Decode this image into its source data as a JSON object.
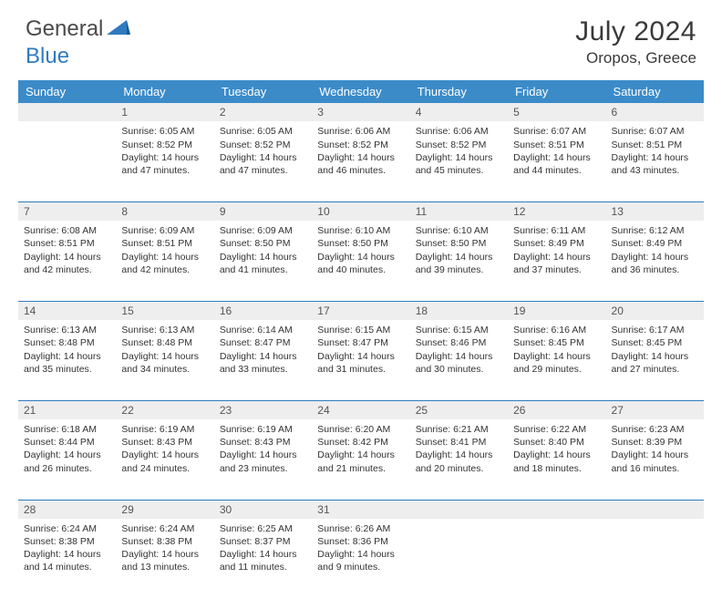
{
  "logo": {
    "part1": "General",
    "part2": "Blue"
  },
  "title": "July 2024",
  "location": "Oropos, Greece",
  "colors": {
    "header_bg": "#3b8bc9",
    "divider": "#2f7bbf",
    "daynum_bg": "#eeeeee",
    "logo_gray": "#4a4a4a",
    "logo_blue": "#2f7bbf"
  },
  "weekdays": [
    "Sunday",
    "Monday",
    "Tuesday",
    "Wednesday",
    "Thursday",
    "Friday",
    "Saturday"
  ],
  "weeks": [
    {
      "nums": [
        "",
        "1",
        "2",
        "3",
        "4",
        "5",
        "6"
      ],
      "cells": [
        null,
        {
          "sunrise": "6:05 AM",
          "sunset": "8:52 PM",
          "daylight": "14 hours and 47 minutes."
        },
        {
          "sunrise": "6:05 AM",
          "sunset": "8:52 PM",
          "daylight": "14 hours and 47 minutes."
        },
        {
          "sunrise": "6:06 AM",
          "sunset": "8:52 PM",
          "daylight": "14 hours and 46 minutes."
        },
        {
          "sunrise": "6:06 AM",
          "sunset": "8:52 PM",
          "daylight": "14 hours and 45 minutes."
        },
        {
          "sunrise": "6:07 AM",
          "sunset": "8:51 PM",
          "daylight": "14 hours and 44 minutes."
        },
        {
          "sunrise": "6:07 AM",
          "sunset": "8:51 PM",
          "daylight": "14 hours and 43 minutes."
        }
      ]
    },
    {
      "nums": [
        "7",
        "8",
        "9",
        "10",
        "11",
        "12",
        "13"
      ],
      "cells": [
        {
          "sunrise": "6:08 AM",
          "sunset": "8:51 PM",
          "daylight": "14 hours and 42 minutes."
        },
        {
          "sunrise": "6:09 AM",
          "sunset": "8:51 PM",
          "daylight": "14 hours and 42 minutes."
        },
        {
          "sunrise": "6:09 AM",
          "sunset": "8:50 PM",
          "daylight": "14 hours and 41 minutes."
        },
        {
          "sunrise": "6:10 AM",
          "sunset": "8:50 PM",
          "daylight": "14 hours and 40 minutes."
        },
        {
          "sunrise": "6:10 AM",
          "sunset": "8:50 PM",
          "daylight": "14 hours and 39 minutes."
        },
        {
          "sunrise": "6:11 AM",
          "sunset": "8:49 PM",
          "daylight": "14 hours and 37 minutes."
        },
        {
          "sunrise": "6:12 AM",
          "sunset": "8:49 PM",
          "daylight": "14 hours and 36 minutes."
        }
      ]
    },
    {
      "nums": [
        "14",
        "15",
        "16",
        "17",
        "18",
        "19",
        "20"
      ],
      "cells": [
        {
          "sunrise": "6:13 AM",
          "sunset": "8:48 PM",
          "daylight": "14 hours and 35 minutes."
        },
        {
          "sunrise": "6:13 AM",
          "sunset": "8:48 PM",
          "daylight": "14 hours and 34 minutes."
        },
        {
          "sunrise": "6:14 AM",
          "sunset": "8:47 PM",
          "daylight": "14 hours and 33 minutes."
        },
        {
          "sunrise": "6:15 AM",
          "sunset": "8:47 PM",
          "daylight": "14 hours and 31 minutes."
        },
        {
          "sunrise": "6:15 AM",
          "sunset": "8:46 PM",
          "daylight": "14 hours and 30 minutes."
        },
        {
          "sunrise": "6:16 AM",
          "sunset": "8:45 PM",
          "daylight": "14 hours and 29 minutes."
        },
        {
          "sunrise": "6:17 AM",
          "sunset": "8:45 PM",
          "daylight": "14 hours and 27 minutes."
        }
      ]
    },
    {
      "nums": [
        "21",
        "22",
        "23",
        "24",
        "25",
        "26",
        "27"
      ],
      "cells": [
        {
          "sunrise": "6:18 AM",
          "sunset": "8:44 PM",
          "daylight": "14 hours and 26 minutes."
        },
        {
          "sunrise": "6:19 AM",
          "sunset": "8:43 PM",
          "daylight": "14 hours and 24 minutes."
        },
        {
          "sunrise": "6:19 AM",
          "sunset": "8:43 PM",
          "daylight": "14 hours and 23 minutes."
        },
        {
          "sunrise": "6:20 AM",
          "sunset": "8:42 PM",
          "daylight": "14 hours and 21 minutes."
        },
        {
          "sunrise": "6:21 AM",
          "sunset": "8:41 PM",
          "daylight": "14 hours and 20 minutes."
        },
        {
          "sunrise": "6:22 AM",
          "sunset": "8:40 PM",
          "daylight": "14 hours and 18 minutes."
        },
        {
          "sunrise": "6:23 AM",
          "sunset": "8:39 PM",
          "daylight": "14 hours and 16 minutes."
        }
      ]
    },
    {
      "nums": [
        "28",
        "29",
        "30",
        "31",
        "",
        "",
        ""
      ],
      "cells": [
        {
          "sunrise": "6:24 AM",
          "sunset": "8:38 PM",
          "daylight": "14 hours and 14 minutes."
        },
        {
          "sunrise": "6:24 AM",
          "sunset": "8:38 PM",
          "daylight": "14 hours and 13 minutes."
        },
        {
          "sunrise": "6:25 AM",
          "sunset": "8:37 PM",
          "daylight": "14 hours and 11 minutes."
        },
        {
          "sunrise": "6:26 AM",
          "sunset": "8:36 PM",
          "daylight": "14 hours and 9 minutes."
        },
        null,
        null,
        null
      ]
    }
  ],
  "labels": {
    "sunrise": "Sunrise:",
    "sunset": "Sunset:",
    "daylight": "Daylight:"
  }
}
